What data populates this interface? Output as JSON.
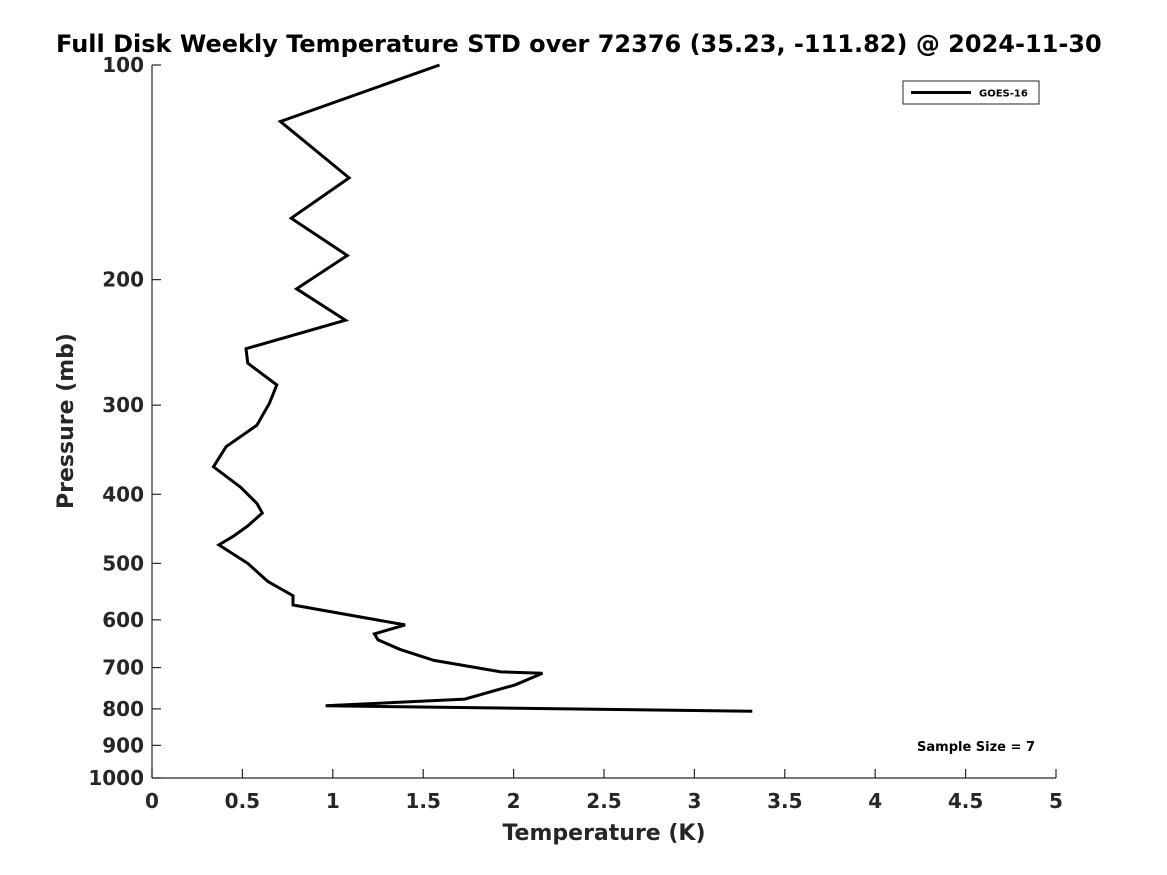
{
  "chart_data": {
    "type": "line",
    "title": "Full Disk Weekly Temperature STD over 72376 (35.23, -111.82) @ 2024-11-30",
    "xlabel": "Temperature (K)",
    "ylabel": "Pressure (mb)",
    "xlim": [
      0,
      5
    ],
    "ylim": [
      100,
      1000
    ],
    "y_scale": "log",
    "y_reversed": true,
    "x_ticks": [
      0,
      0.5,
      1,
      1.5,
      2,
      2.5,
      3,
      3.5,
      4,
      4.5,
      5
    ],
    "x_tick_labels": [
      "0",
      "0.5",
      "1",
      "1.5",
      "2",
      "2.5",
      "3",
      "3.5",
      "4",
      "4.5",
      "5"
    ],
    "y_ticks": [
      100,
      200,
      300,
      400,
      500,
      600,
      700,
      800,
      900,
      1000
    ],
    "y_tick_labels": [
      "100",
      "200",
      "300",
      "400",
      "500",
      "600",
      "700",
      "800",
      "900",
      "1000"
    ],
    "grid": false,
    "legend_position": "top-right",
    "series": [
      {
        "name": "GOES-16",
        "color": "#000000",
        "x": [
          1.59,
          0.71,
          1.09,
          0.77,
          1.08,
          0.8,
          1.07,
          0.52,
          0.53,
          0.69,
          0.65,
          0.58,
          0.41,
          0.34,
          0.49,
          0.58,
          0.61,
          0.53,
          0.45,
          0.37,
          0.53,
          0.64,
          0.78,
          0.78,
          1.4,
          1.23,
          1.25,
          1.37,
          1.56,
          1.93,
          2.16,
          2.01,
          1.73,
          0.96,
          3.32
        ],
        "y": [
          100,
          120,
          144,
          164,
          185,
          206,
          228,
          250,
          262,
          281,
          298,
          320,
          343,
          366,
          391,
          412,
          425,
          443,
          458,
          471,
          500,
          530,
          555,
          572,
          610,
          628,
          640,
          660,
          684,
          710,
          713,
          740,
          775,
          792,
          806
        ]
      }
    ],
    "annotations": [
      {
        "text": "Sample Size = 7",
        "position": "bottom-right"
      }
    ]
  }
}
